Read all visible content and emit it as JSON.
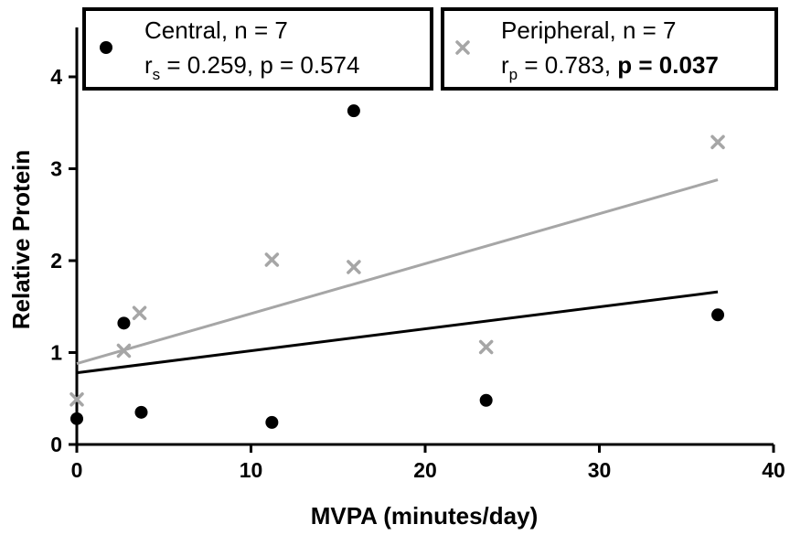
{
  "chart_data": {
    "type": "scatter",
    "xlabel": "MVPA (minutes/day)",
    "ylabel": "Relative  Protein",
    "xlim": [
      0,
      40
    ],
    "ylim": [
      0,
      4.5
    ],
    "xticks": [
      0,
      10,
      20,
      30,
      40
    ],
    "yticks": [
      0,
      1,
      2,
      3,
      4
    ],
    "grid": false,
    "legend_placement": "top",
    "series": [
      {
        "name": "Central, n = 7",
        "marker": "circle",
        "color": "#000000",
        "points": [
          [
            0,
            0.28
          ],
          [
            2.7,
            1.32
          ],
          [
            3.7,
            0.35
          ],
          [
            11.2,
            0.24
          ],
          [
            15.9,
            3.63
          ],
          [
            23.5,
            0.48
          ],
          [
            36.8,
            1.41
          ]
        ],
        "stat_var": "r",
        "stat_sub": "s",
        "stat_value": " = 0.259, p = 0.574",
        "p_bold": "",
        "fit": {
          "x0": 0,
          "y0": 0.78,
          "x1": 36.8,
          "y1": 1.66
        }
      },
      {
        "name": "Peripheral, n = 7",
        "marker": "x",
        "color": "#a6a6a6",
        "points": [
          [
            0,
            0.49
          ],
          [
            2.7,
            1.02
          ],
          [
            3.6,
            1.43
          ],
          [
            11.2,
            2.01
          ],
          [
            15.9,
            1.93
          ],
          [
            23.5,
            1.06
          ],
          [
            36.8,
            3.29
          ]
        ],
        "stat_var": "r",
        "stat_sub": "p",
        "stat_value": " = 0.783, ",
        "p_bold": "p = 0.037",
        "fit": {
          "x0": 0,
          "y0": 0.88,
          "x1": 36.8,
          "y1": 2.88
        }
      }
    ]
  }
}
